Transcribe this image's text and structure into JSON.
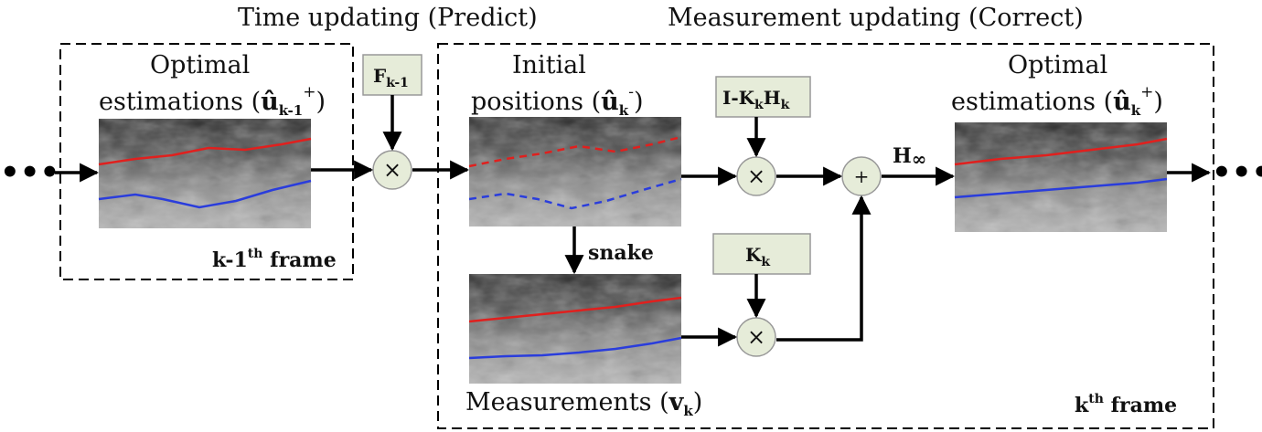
{
  "headers": {
    "predict": "Time updating (Predict)",
    "correct": "Measurement updating (Correct)"
  },
  "left_panel": {
    "title_line1": "Optimal",
    "title_line2": "estimations (",
    "title_symbol": "û",
    "title_sub": "k-1",
    "title_sup": "+",
    "title_close": ")",
    "frame_label": "k-1",
    "frame_sup": "th",
    "frame_suffix": " frame"
  },
  "initial": {
    "line1": "Initial",
    "line2": "positions (",
    "symbol": "û",
    "sub": "k",
    "sup": "-",
    "close": ")"
  },
  "measurements": {
    "text": "Measurements (",
    "symbol": "v",
    "sub": "k",
    "close": ")"
  },
  "right_panel": {
    "title_line1": "Optimal",
    "title_line2": "estimations (",
    "title_symbol": "û",
    "title_sub": "k",
    "title_sup": "+",
    "title_close": ")",
    "frame_label": "k",
    "frame_sup": "th",
    "frame_suffix": " frame"
  },
  "operators": {
    "F": {
      "main": "F",
      "sub": "k-1"
    },
    "IKH": {
      "part1": "I-K",
      "sub1": "k",
      "part2": "H",
      "sub2": "k"
    },
    "K": {
      "main": "K",
      "sub": "k"
    }
  },
  "symbols": {
    "multiply": "×",
    "plus": "+",
    "ellipsis": "•••"
  },
  "snake_label": "snake",
  "hinf_label": "H",
  "hinf_sub": "∞",
  "colors": {
    "operator_fill": "#e6ecd9",
    "operator_stroke": "#999999",
    "upper_contour": "#e0201e",
    "lower_contour": "#2a3ddc"
  }
}
